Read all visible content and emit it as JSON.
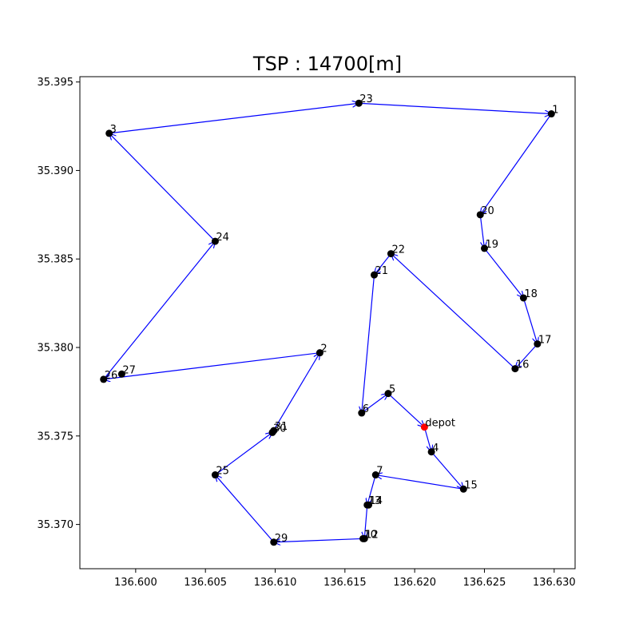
{
  "chart_data": {
    "type": "scatter",
    "title": "TSP : 14700[m]",
    "xlabel": "",
    "ylabel": "",
    "xlim": [
      136.596,
      136.6315
    ],
    "ylim": [
      35.3675,
      35.3953
    ],
    "xticks": [
      "136.600",
      "136.605",
      "136.610",
      "136.615",
      "136.620",
      "136.625",
      "136.630"
    ],
    "yticks": [
      "35.370",
      "35.375",
      "35.380",
      "35.385",
      "35.390",
      "35.395"
    ],
    "grid": false,
    "route_color": "#0000ff",
    "node_color": "#000000",
    "depot_color": "#ff0000",
    "nodes": [
      {
        "label": "depot",
        "x": 136.6207,
        "y": 35.3755,
        "depot": true
      },
      {
        "label": "1",
        "x": 136.6298,
        "y": 35.3932
      },
      {
        "label": "2",
        "x": 136.6132,
        "y": 35.3797
      },
      {
        "label": "3",
        "x": 136.5981,
        "y": 35.3921
      },
      {
        "label": "4",
        "x": 136.6212,
        "y": 35.3741
      },
      {
        "label": "5",
        "x": 136.6181,
        "y": 35.3774
      },
      {
        "label": "6",
        "x": 136.6162,
        "y": 35.3763
      },
      {
        "label": "7",
        "x": 136.6172,
        "y": 35.3728
      },
      {
        "label": "10",
        "x": 136.6163,
        "y": 35.3692
      },
      {
        "label": "12",
        "x": 136.6164,
        "y": 35.3692
      },
      {
        "label": "13",
        "x": 136.6166,
        "y": 35.3711
      },
      {
        "label": "14",
        "x": 136.6167,
        "y": 35.3711
      },
      {
        "label": "15",
        "x": 136.6235,
        "y": 35.372
      },
      {
        "label": "16",
        "x": 136.6272,
        "y": 35.3788
      },
      {
        "label": "17",
        "x": 136.6288,
        "y": 35.3802
      },
      {
        "label": "18",
        "x": 136.6278,
        "y": 35.3828
      },
      {
        "label": "19",
        "x": 136.625,
        "y": 35.3856
      },
      {
        "label": "20",
        "x": 136.6247,
        "y": 35.3875
      },
      {
        "label": "21",
        "x": 136.6171,
        "y": 35.3841
      },
      {
        "label": "22",
        "x": 136.6183,
        "y": 35.3853
      },
      {
        "label": "23",
        "x": 136.616,
        "y": 35.3938
      },
      {
        "label": "24",
        "x": 136.6057,
        "y": 35.386
      },
      {
        "label": "25",
        "x": 136.6057,
        "y": 35.3728
      },
      {
        "label": "26",
        "x": 136.5977,
        "y": 35.3782
      },
      {
        "label": "27",
        "x": 136.599,
        "y": 35.3785
      },
      {
        "label": "29",
        "x": 136.6099,
        "y": 35.369
      },
      {
        "label": "30",
        "x": 136.6098,
        "y": 35.3752
      },
      {
        "label": "31",
        "x": 136.6099,
        "y": 35.3753
      }
    ],
    "route": [
      "depot",
      "4",
      "15",
      "7",
      "13",
      "12",
      "29",
      "25",
      "30",
      "2",
      "26",
      "24",
      "3",
      "23",
      "1",
      "20",
      "19",
      "18",
      "17",
      "16",
      "22",
      "21",
      "6",
      "5",
      "depot"
    ]
  }
}
